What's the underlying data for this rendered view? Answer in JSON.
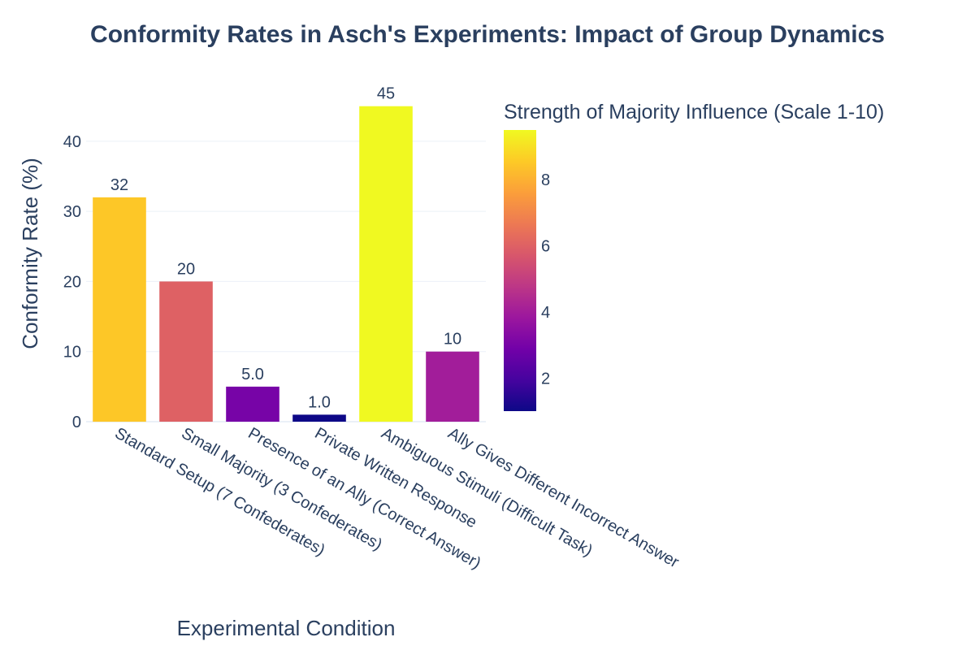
{
  "chart_data": {
    "type": "bar",
    "title": "Conformity Rates in Asch's Experiments: Impact of Group Dynamics",
    "xlabel": "Experimental Condition",
    "ylabel": "Conformity Rate (%)",
    "categories": [
      "Standard Setup (7 Confederates)",
      "Small Majority (3 Confederates)",
      "Presence of an Ally (Correct Answer)",
      "Private Written Response",
      "Ambiguous Stimuli (Difficult Task)",
      "Ally Gives Different Incorrect Answer"
    ],
    "values": [
      32,
      20,
      5,
      1,
      45,
      10
    ],
    "value_labels": [
      "32",
      "20",
      "5.0",
      "1.0",
      "45",
      "10"
    ],
    "color_values": [
      8.5,
      6,
      3,
      1,
      9.5,
      4
    ],
    "ylim": [
      0,
      47.4
    ],
    "yticks": [
      0,
      10,
      20,
      30,
      40
    ],
    "grid": true,
    "colorbar": {
      "title": "Strength of Majority Influence (Scale 1-10)",
      "range": [
        1,
        9.5
      ],
      "ticks": [
        2,
        4,
        6,
        8
      ],
      "colorscale": "Plasma",
      "colors": [
        "#0d0887",
        "#46039f",
        "#7201a8",
        "#9c179e",
        "#bd3786",
        "#d8576b",
        "#ed7953",
        "#fb9f3a",
        "#fdca26",
        "#f0f921"
      ]
    },
    "text_color": "#2a3f5f",
    "grid_color": "#ebf0f8"
  }
}
